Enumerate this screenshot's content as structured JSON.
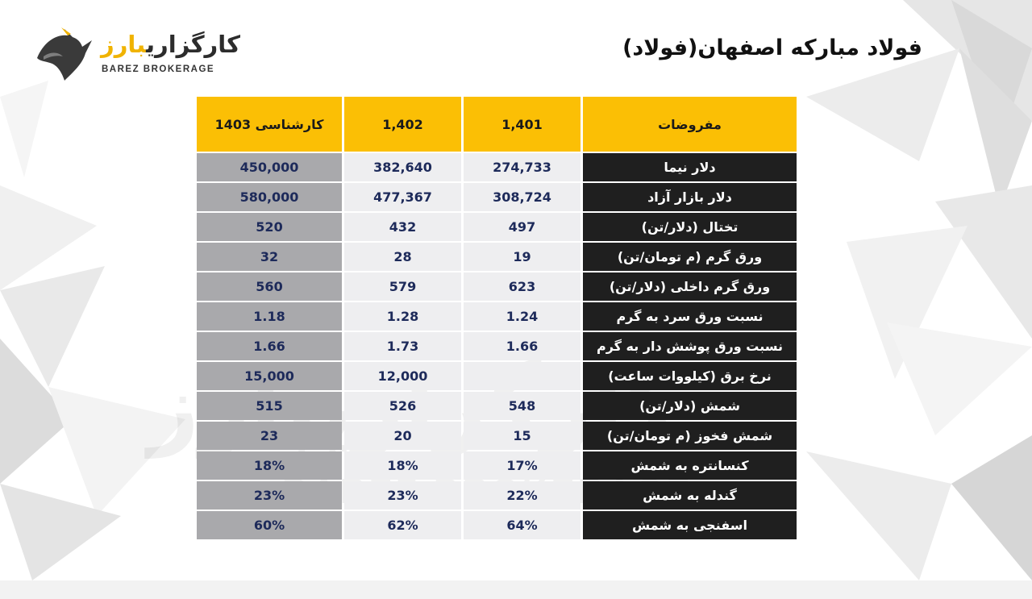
{
  "header": {
    "title": "فولاد مبارکه اصفهان(فولاد)"
  },
  "logo": {
    "name_main": "کارگزاری",
    "name_accent": "بارز",
    "name_en": "BAREZ BROKERAGE"
  },
  "table": {
    "headers": [
      "مفروضات",
      "1,401",
      "1,402",
      "کارشناسی 1403"
    ],
    "rows": [
      {
        "label": "دلار نیما",
        "values": [
          "274,733",
          "382,640",
          "450,000"
        ]
      },
      {
        "label": "دلار بازار آزاد",
        "values": [
          "308,724",
          "477,367",
          "580,000"
        ]
      },
      {
        "label": "تختال (دلار/تن)",
        "values": [
          "497",
          "432",
          "520"
        ]
      },
      {
        "label": "ورق گرم (م تومان/تن)",
        "values": [
          "19",
          "28",
          "32"
        ]
      },
      {
        "label": "ورق گرم داخلی (دلار/تن)",
        "values": [
          "623",
          "579",
          "560"
        ]
      },
      {
        "label": "نسبت ورق سرد به گرم",
        "values": [
          "1.24",
          "1.28",
          "1.18"
        ]
      },
      {
        "label": "نسبت ورق پوشش دار به گرم",
        "values": [
          "1.66",
          "1.73",
          "1.66"
        ]
      },
      {
        "label": "نرخ برق (کیلووات ساعت)",
        "values": [
          "",
          "12,000",
          "15,000"
        ]
      },
      {
        "label": "شمش (دلار/تن)",
        "values": [
          "548",
          "526",
          "515"
        ]
      },
      {
        "label": "شمش فخوز (م تومان/تن)",
        "values": [
          "15",
          "20",
          "23"
        ]
      },
      {
        "label": "کنسانتره به شمش",
        "values": [
          "17%",
          "18%",
          "18%"
        ]
      },
      {
        "label": "گندله به شمش",
        "values": [
          "22%",
          "23%",
          "23%"
        ]
      },
      {
        "label": "اسفنجی به شمش",
        "values": [
          "64%",
          "62%",
          "60%"
        ]
      }
    ]
  },
  "colors": {
    "header_yellow": "#fbbf05",
    "label_dark": "#1f1f1f",
    "value_blue": "#1d2a5a",
    "cell_light": "#eeeef0",
    "cell_gray": "#a9a9ac"
  }
}
